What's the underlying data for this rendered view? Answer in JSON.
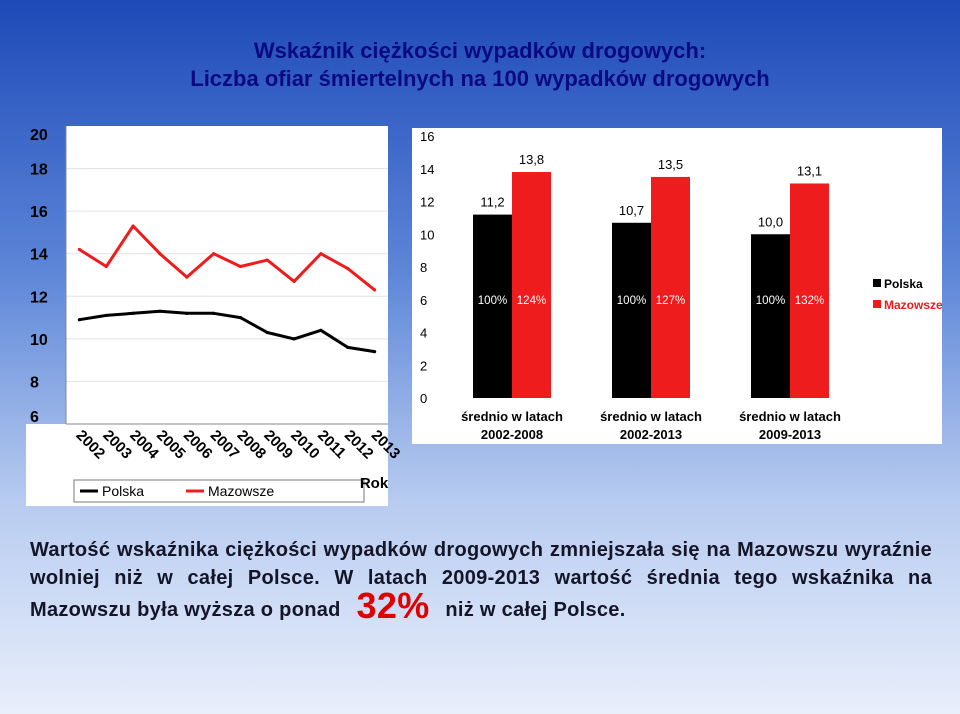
{
  "title_line1": "Wskaźnik ciężkości wypadków drogowych:",
  "title_line2": "Liczba ofiar śmiertelnych na 100 wypadków drogowych",
  "colors": {
    "polska": "#000000",
    "mazowsze": "#ee1c1c",
    "title": "#0a0a80",
    "highlight": "#e00000"
  },
  "chart_data": [
    {
      "type": "line",
      "x": [
        "2002",
        "2003",
        "2004",
        "2005",
        "2006",
        "2007",
        "2008",
        "2009",
        "2010",
        "2011",
        "2012",
        "2013"
      ],
      "series": [
        {
          "name": "Polska",
          "values": [
            10.9,
            11.1,
            11.2,
            11.3,
            11.2,
            11.2,
            11.0,
            10.3,
            10.0,
            10.4,
            9.6,
            9.4
          ]
        },
        {
          "name": "Mazowsze",
          "values": [
            14.2,
            13.4,
            15.3,
            14.0,
            12.9,
            14.0,
            13.4,
            13.7,
            12.7,
            14.0,
            13.3,
            12.3
          ]
        }
      ],
      "xlabel": "Rok",
      "ylim": [
        6,
        20
      ],
      "yticks": [
        "6",
        "8",
        "10",
        "12",
        "14",
        "16",
        "18",
        "20"
      ],
      "legend_placement": "bottom",
      "grid": true
    },
    {
      "type": "bar",
      "categories": [
        [
          "średnio w latach",
          "2002-2008"
        ],
        [
          "średnio w latach",
          "2002-2013"
        ],
        [
          "średnio w latach",
          "2009-2013"
        ]
      ],
      "series": [
        {
          "name": "Polska",
          "values": [
            11.2,
            10.7,
            10.0
          ],
          "value_labels": [
            "11,2",
            "10,7",
            "10,0"
          ],
          "pct_labels": [
            "100%",
            "100%",
            "100%"
          ]
        },
        {
          "name": "Mazowsze",
          "values": [
            13.8,
            13.5,
            13.1
          ],
          "value_labels": [
            "13,8",
            "13,5",
            "13,1"
          ],
          "pct_labels": [
            "124%",
            "127%",
            "132%"
          ]
        }
      ],
      "ylim": [
        0,
        16
      ],
      "yticks": [
        "0",
        "2",
        "4",
        "6",
        "8",
        "10",
        "12",
        "14",
        "16"
      ],
      "legend_placement": "right",
      "grid": false
    }
  ],
  "text": {
    "before": "Wartość wskaźnika ciężkości wypadków drogowych zmniejszała się na Mazowszu wyraźnie wolniej niż w całej Polsce. W latach 2009-2013 wartość średnia tego wskaźnika na Mazowszu była wyższa o ponad",
    "highlight": "32%",
    "after": "niż w całej Polsce."
  }
}
